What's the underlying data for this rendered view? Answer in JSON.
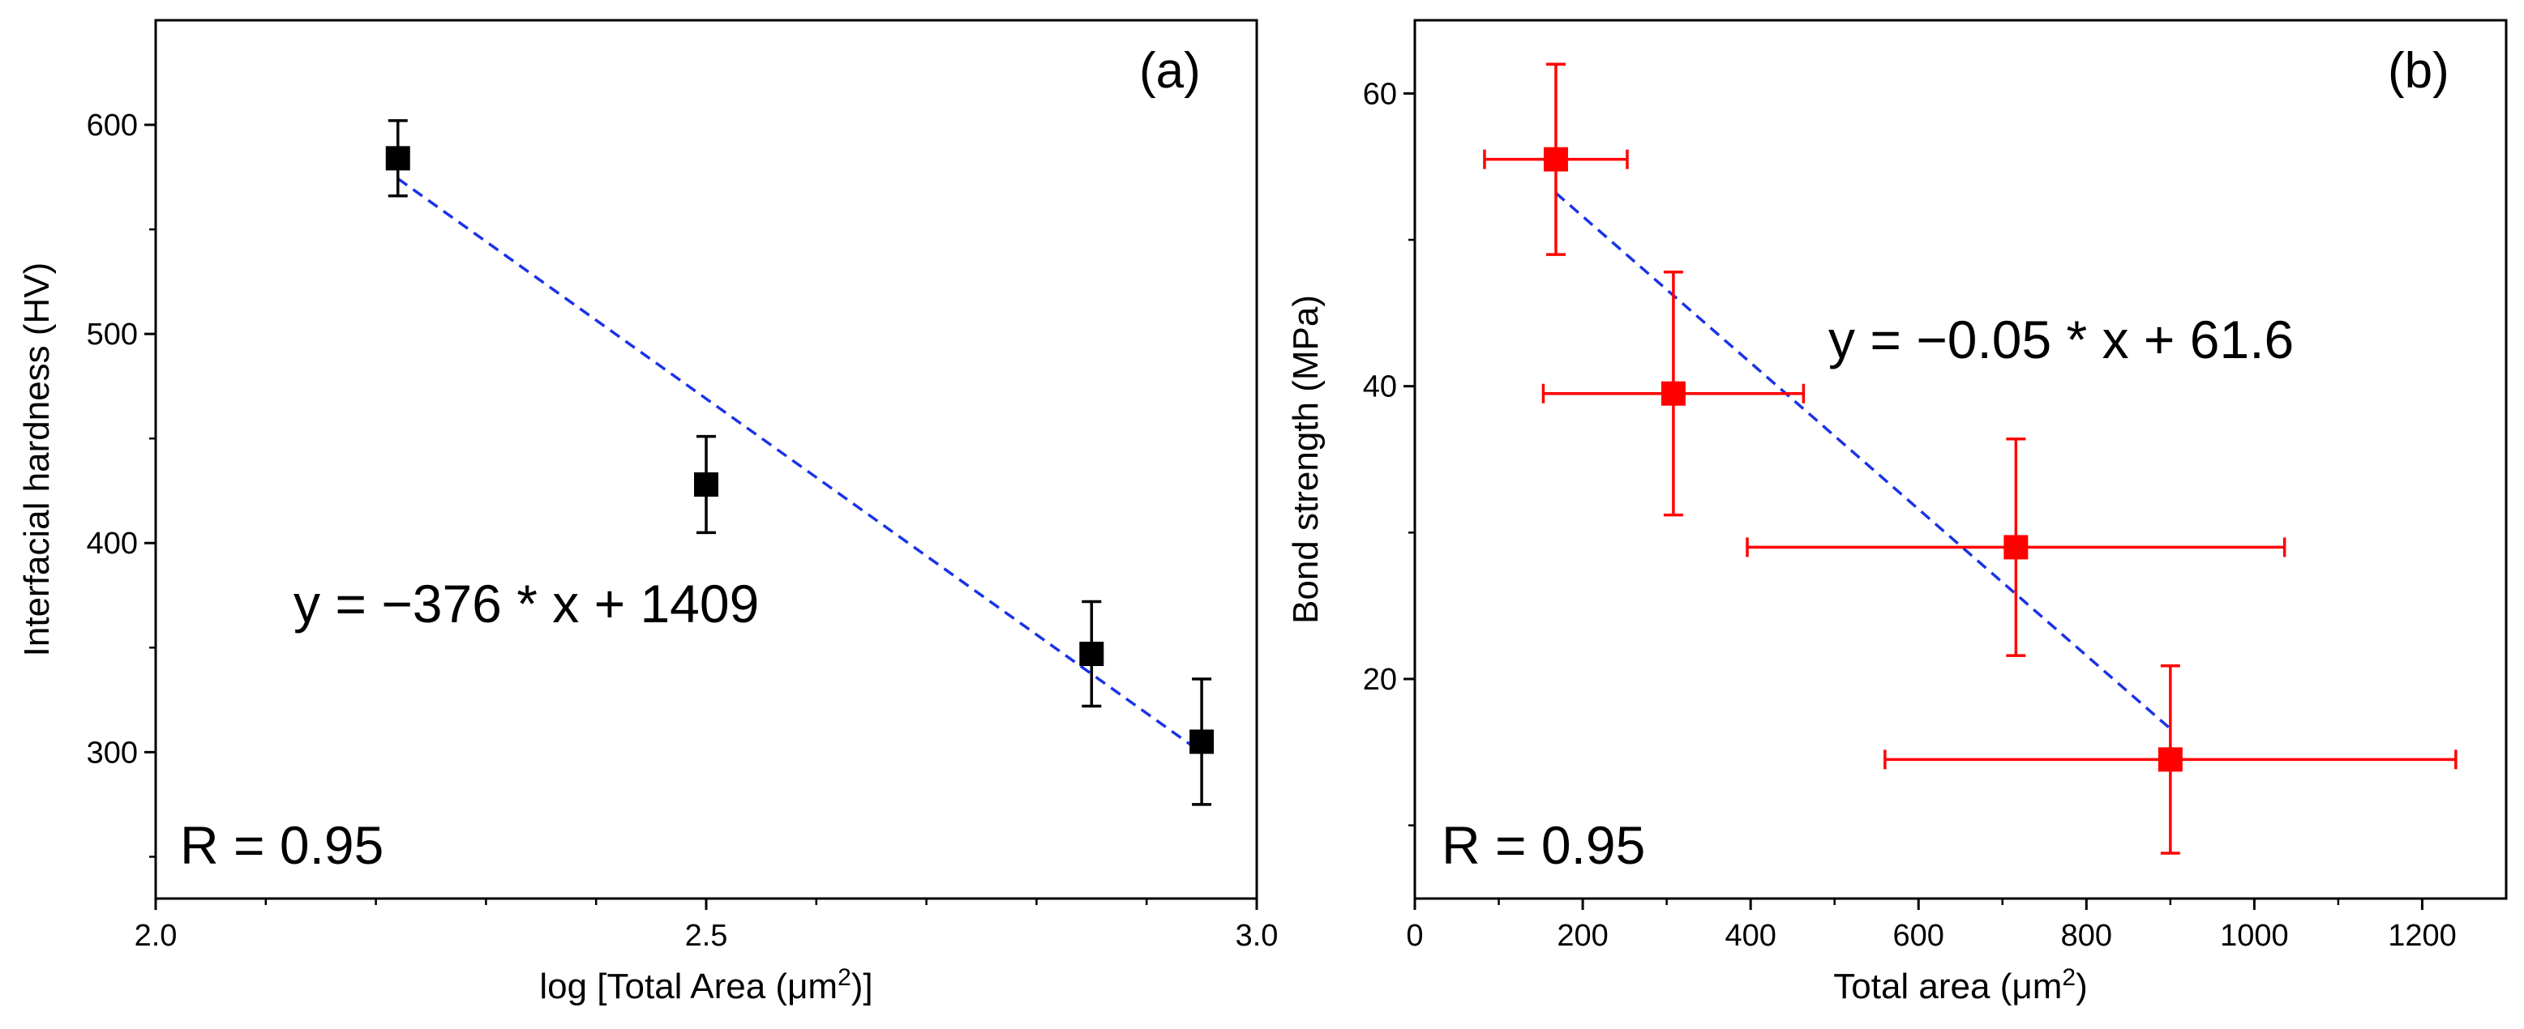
{
  "chart_data": [
    {
      "type": "scatter",
      "panel_label": "(a)",
      "xlabel": "log [Total Area (μm²)]",
      "ylabel": "Interfacial hardness (HV)",
      "xlim": [
        2.0,
        3.0
      ],
      "ylim": [
        230,
        650
      ],
      "x_ticks": [
        2.0,
        2.5,
        3.0
      ],
      "x_tick_labels": [
        "2.0",
        "2.5",
        "3.0"
      ],
      "y_ticks": [
        300,
        400,
        500,
        600
      ],
      "y_tick_labels": [
        "300",
        "400",
        "500",
        "600"
      ],
      "series": [
        {
          "x": [
            2.22,
            2.5,
            2.85,
            2.95
          ],
          "y": [
            584,
            428,
            347,
            305
          ],
          "y_err": [
            18,
            23,
            25,
            30
          ],
          "color": "#000000",
          "marker": "square"
        }
      ],
      "fit_line": {
        "x": [
          2.22,
          2.95
        ],
        "slope": -376,
        "intercept": 1409,
        "color": "#1a33e6",
        "style": "dashed"
      },
      "equation": "y = −376 * x + 1409",
      "r_value": "R = 0.95",
      "grid": false
    },
    {
      "type": "scatter",
      "panel_label": "(b)",
      "xlabel": "Total area (μm²)",
      "ylabel": "Bond strength (MPa)",
      "xlim": [
        0,
        1300
      ],
      "ylim": [
        5,
        65
      ],
      "x_ticks": [
        0,
        200,
        400,
        600,
        800,
        1000,
        1200
      ],
      "x_tick_labels": [
        "0",
        "200",
        "400",
        "600",
        "800",
        "1000",
        "1200"
      ],
      "y_ticks": [
        20,
        40,
        60
      ],
      "y_tick_labels": [
        "20",
        "40",
        "60"
      ],
      "series": [
        {
          "x": [
            168,
            308,
            716,
            900
          ],
          "y": [
            55.5,
            39.5,
            29,
            14.5
          ],
          "x_err": [
            85,
            155,
            320,
            340
          ],
          "y_err": [
            6.5,
            8.3,
            7.4,
            6.4
          ],
          "color": "#ff0000",
          "marker": "square"
        }
      ],
      "fit_line": {
        "x": [
          168,
          900
        ],
        "slope": -0.05,
        "intercept": 61.6,
        "color": "#1a33e6",
        "style": "dashed"
      },
      "equation": "y = −0.05 * x + 61.6",
      "r_value": "R = 0.95",
      "grid": false
    }
  ]
}
